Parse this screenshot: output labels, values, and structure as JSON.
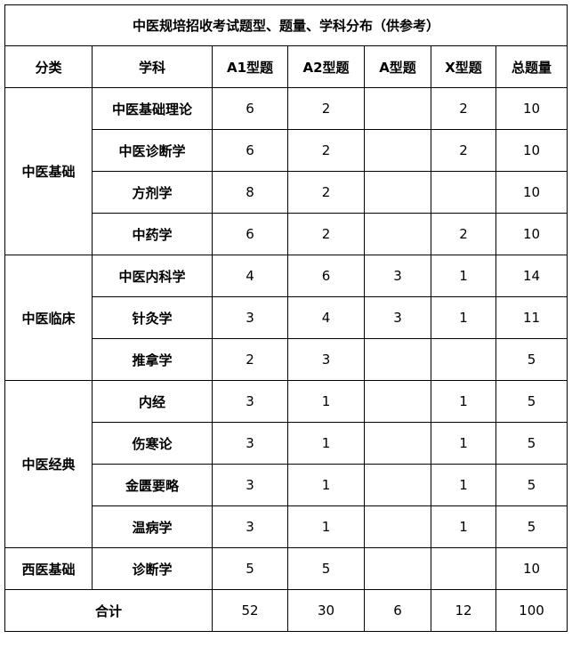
{
  "title": "中医规培招收考试题型、题量、学科分布（供参考）",
  "headers": [
    "分类",
    "学科",
    "A1型题",
    "A2型题",
    "A型题",
    "X型题",
    "总题量"
  ],
  "groups": [
    {
      "category": "中医基础",
      "rows": [
        {
          "subject": "中医基础理论",
          "a1": "6",
          "a2": "2",
          "a": "",
          "x": "2",
          "total": "10"
        },
        {
          "subject": "中医诊断学",
          "a1": "6",
          "a2": "2",
          "a": "",
          "x": "2",
          "total": "10"
        },
        {
          "subject": "方剂学",
          "a1": "8",
          "a2": "2",
          "a": "",
          "x": "",
          "total": "10"
        },
        {
          "subject": "中药学",
          "a1": "6",
          "a2": "2",
          "a": "",
          "x": "2",
          "total": "10"
        }
      ]
    },
    {
      "category": "中医临床",
      "rows": [
        {
          "subject": "中医内科学",
          "a1": "4",
          "a2": "6",
          "a": "3",
          "x": "1",
          "total": "14"
        },
        {
          "subject": "针灸学",
          "a1": "3",
          "a2": "4",
          "a": "3",
          "x": "1",
          "total": "11"
        },
        {
          "subject": "推拿学",
          "a1": "2",
          "a2": "3",
          "a": "",
          "x": "",
          "total": "5"
        }
      ]
    },
    {
      "category": "中医经典",
      "rows": [
        {
          "subject": "内经",
          "a1": "3",
          "a2": "1",
          "a": "",
          "x": "1",
          "total": "5"
        },
        {
          "subject": "伤寒论",
          "a1": "3",
          "a2": "1",
          "a": "",
          "x": "1",
          "total": "5"
        },
        {
          "subject": "金匮要略",
          "a1": "3",
          "a2": "1",
          "a": "",
          "x": "1",
          "total": "5"
        },
        {
          "subject": "温病学",
          "a1": "3",
          "a2": "1",
          "a": "",
          "x": "1",
          "total": "5"
        }
      ]
    },
    {
      "category": "西医基础",
      "rows": [
        {
          "subject": "诊断学",
          "a1": "5",
          "a2": "5",
          "a": "",
          "x": "",
          "total": "10"
        }
      ]
    }
  ],
  "totals": {
    "label": "合计",
    "a1": "52",
    "a2": "30",
    "a": "6",
    "x": "12",
    "total": "100"
  }
}
